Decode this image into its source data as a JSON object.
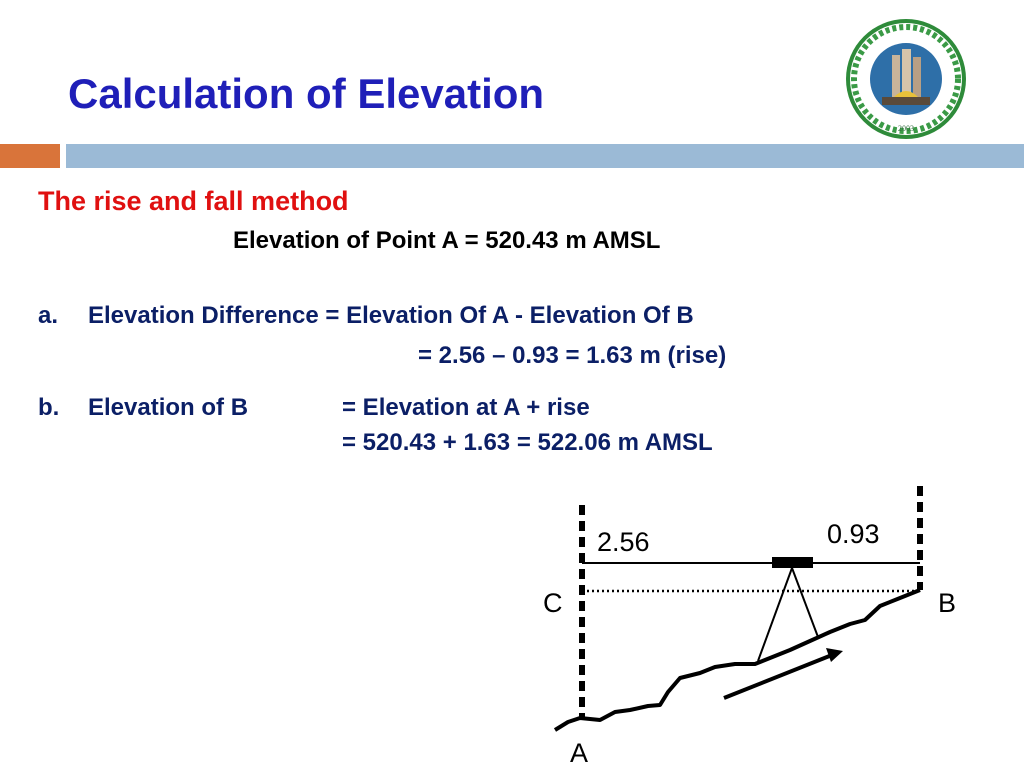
{
  "slide": {
    "title": "Calculation of Elevation",
    "logo_alt": "University of Palestine seal",
    "logo_text": "جامعة فلسطين · UNIVERSITY OF PALESTINE · 2003",
    "subtitle": "The rise and fall method",
    "given": "Elevation of Point A = 520.43 m AMSL",
    "item_a": {
      "marker": "a.",
      "text": "Elevation Difference = Elevation Of A - Elevation Of B",
      "result": "=  2.56 – 0.93 = 1.63 m (rise)"
    },
    "item_b": {
      "marker": "b.",
      "text": "Elevation of B",
      "expr1": "= Elevation at A + rise",
      "expr2": "= 520.43 + 1.63 = 522.06 m AMSL"
    }
  },
  "diagram": {
    "reading_back": "2.56",
    "reading_fore": "0.93",
    "label_c": "C",
    "label_b": "B",
    "label_a": "A"
  },
  "colors": {
    "title": "#1f1fb8",
    "subtitle": "#e01010",
    "body": "#0b1f66",
    "bar_orange": "#d9743a",
    "bar_blue": "#9bbad6"
  }
}
